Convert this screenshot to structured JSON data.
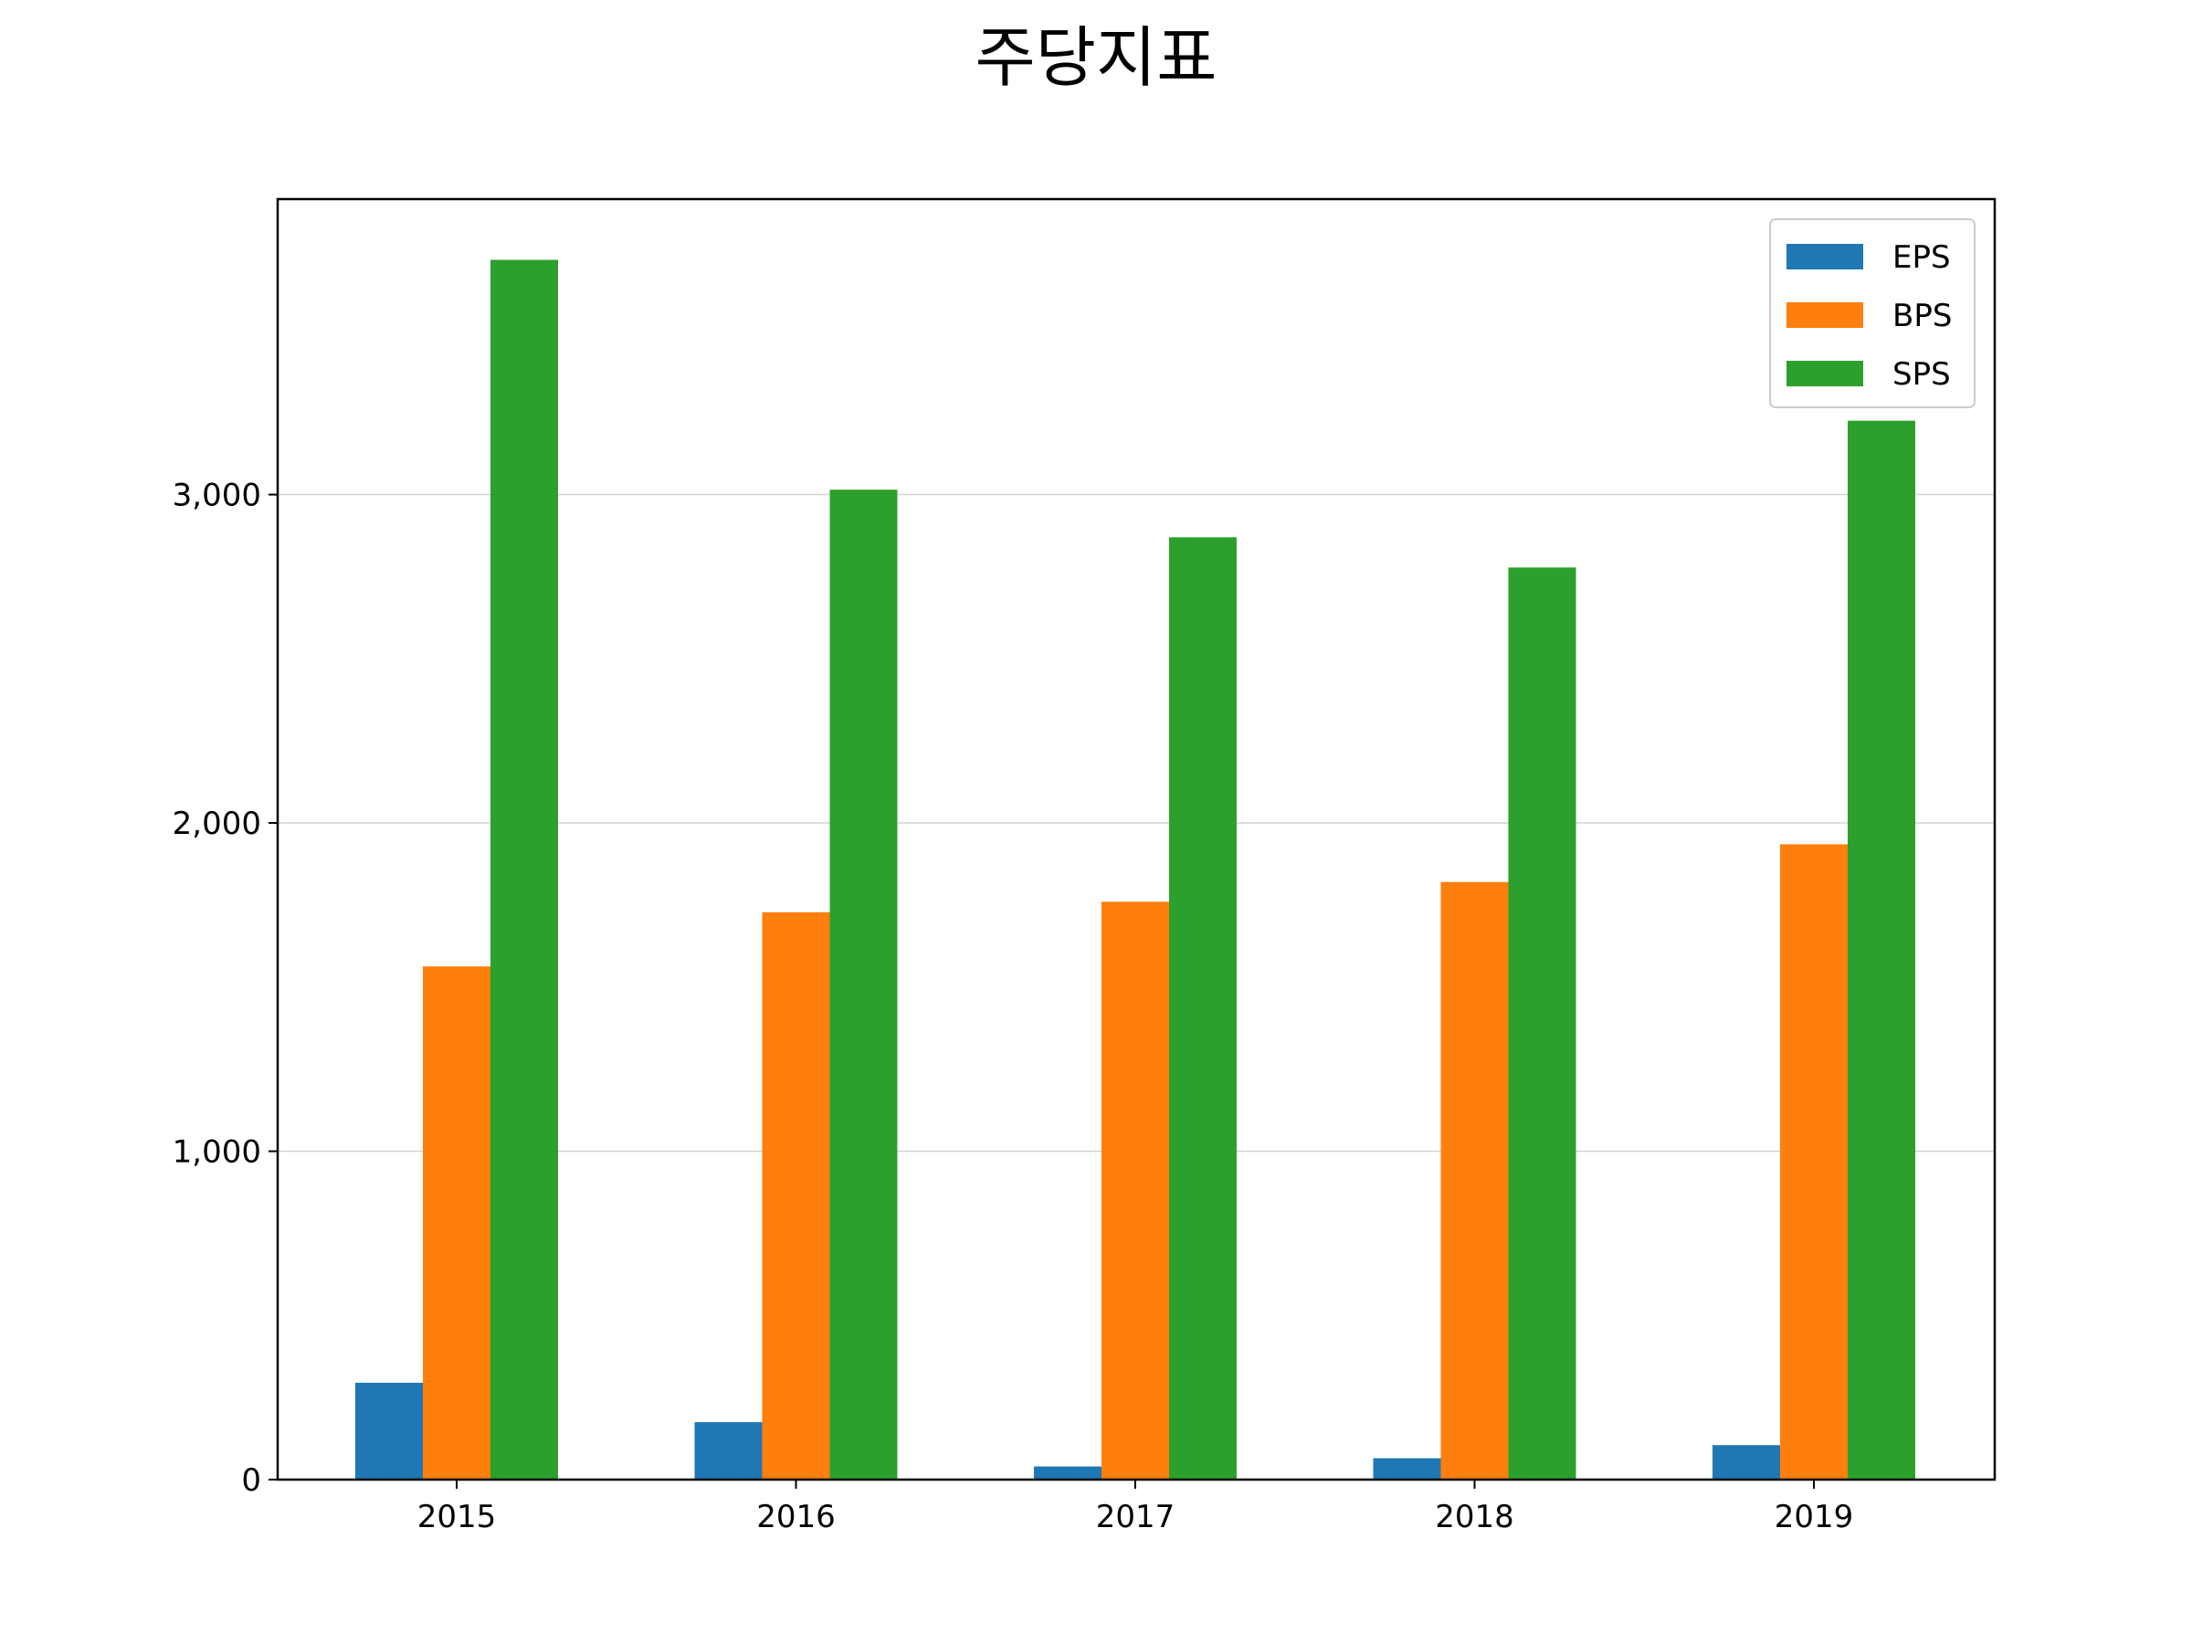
{
  "chart_data": {
    "type": "bar",
    "title": "주당지표",
    "xlabel": "",
    "ylabel": "",
    "categories": [
      "2015",
      "2016",
      "2017",
      "2018",
      "2019"
    ],
    "series": [
      {
        "name": "EPS",
        "color": "#1f77b4",
        "values": [
          295,
          175,
          40,
          65,
          105
        ]
      },
      {
        "name": "BPS",
        "color": "#ff7f0e",
        "values": [
          1563,
          1728,
          1760,
          1820,
          1935
        ]
      },
      {
        "name": "SPS",
        "color": "#2ca02c",
        "values": [
          3715,
          3015,
          2870,
          2778,
          3225
        ]
      }
    ],
    "ylim": [
      0,
      3900
    ],
    "yticks": [
      0,
      1000,
      2000,
      3000
    ],
    "ytick_labels": [
      "0",
      "1,000",
      "2,000",
      "3,000"
    ],
    "grid": {
      "axis": "y",
      "on": true
    },
    "legend": {
      "placement": "top-right"
    }
  }
}
